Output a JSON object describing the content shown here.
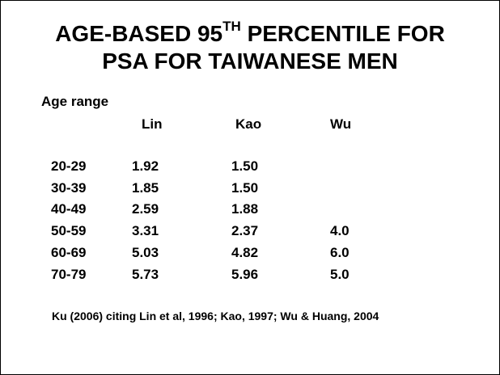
{
  "title": {
    "line1_prefix": "AGE-BASED 95",
    "line1_sup": "TH",
    "line1_suffix": " PERCENTILE FOR",
    "line2": "PSA FOR TAIWANESE MEN"
  },
  "table": {
    "row_header": "Age range",
    "columns": [
      "Lin",
      "Kao",
      "Wu"
    ],
    "rows": [
      {
        "age": "20-29",
        "lin": "1.92",
        "kao": "1.50",
        "wu": ""
      },
      {
        "age": "30-39",
        "lin": "1.85",
        "kao": "1.50",
        "wu": ""
      },
      {
        "age": "40-49",
        "lin": "2.59",
        "kao": "1.88",
        "wu": ""
      },
      {
        "age": "50-59",
        "lin": "3.31",
        "kao": "2.37",
        "wu": "4.0"
      },
      {
        "age": "60-69",
        "lin": "5.03",
        "kao": "4.82",
        "wu": "6.0"
      },
      {
        "age": "70-79",
        "lin": "5.73",
        "kao": "5.96",
        "wu": "5.0"
      }
    ]
  },
  "footnote": "Ku (2006) citing Lin et al, 1996; Kao, 1997; Wu & Huang, 2004"
}
